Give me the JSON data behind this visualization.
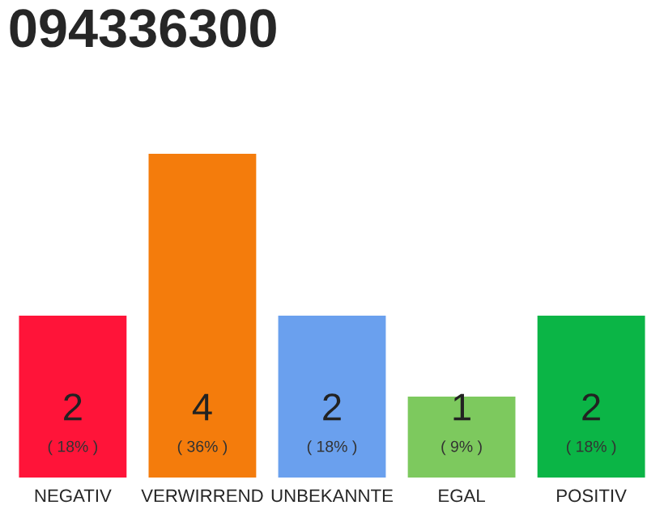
{
  "chart_data": {
    "type": "bar",
    "title": "094336300",
    "categories": [
      "NEGATIV",
      "VERWIRREND",
      "UNBEKANNTE",
      "EGAL",
      "POSITIV"
    ],
    "values": [
      2,
      4,
      2,
      1,
      2
    ],
    "colors": [
      "#ff1439",
      "#f47c0c",
      "#6aa0ee",
      "#7dc95e",
      "#0bb546"
    ],
    "data_labels": true,
    "annotations": [
      "( 18% )",
      "( 36% )",
      "( 18% )",
      "( 9% )",
      "( 18% )"
    ],
    "tick_labels": "x",
    "grid": false,
    "legend": false
  }
}
